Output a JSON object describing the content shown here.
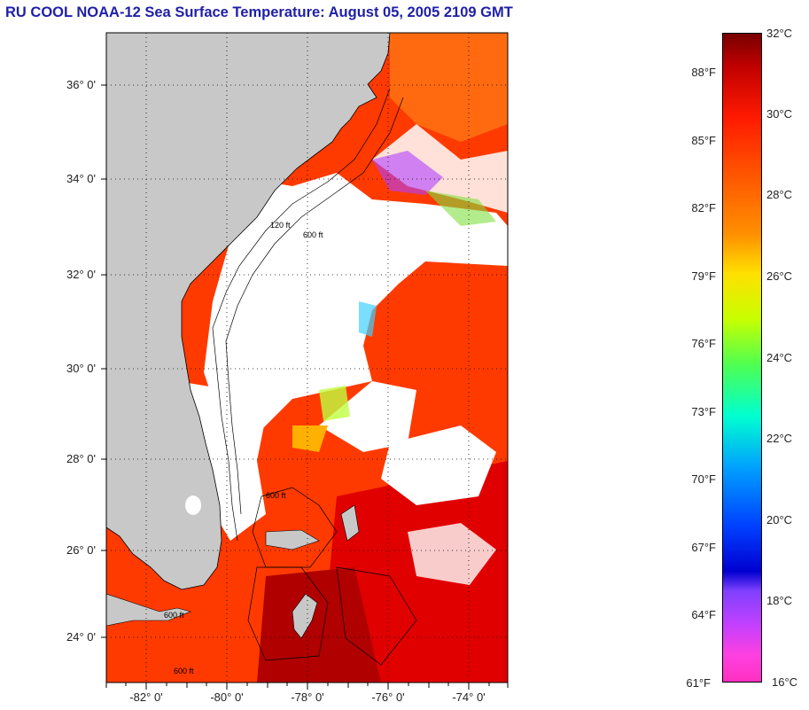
{
  "title": "RU COOL  NOAA-12  Sea Surface Temperature:  August 05, 2005 2109 GMT",
  "map": {
    "lat_labels": [
      "36° 0'",
      "34° 0'",
      "32° 0'",
      "30° 0'",
      "28° 0'",
      "26° 0'",
      "24° 0'"
    ],
    "lon_labels": [
      "-82° 0'",
      "-80° 0'",
      "-78° 0'",
      "-76° 0'",
      "-74° 0'"
    ],
    "contour_labels": [
      "120 ft",
      "600 ft",
      "600 ft",
      "600 ft",
      "600 ft"
    ],
    "colors": {
      "land": "#c8c8c8",
      "cloud": "#ffffff",
      "warm": "#ff2a00",
      "hot": "#c80000",
      "coastline": "#000000"
    }
  },
  "colorbar": {
    "fahrenheit_labels": [
      "88°F",
      "85°F",
      "82°F",
      "79°F",
      "76°F",
      "73°F",
      "70°F",
      "67°F",
      "64°F",
      "61°F"
    ],
    "celsius_labels": [
      "32°C",
      "30°C",
      "28°C",
      "26°C",
      "24°C",
      "22°C",
      "20°C",
      "18°C",
      "16°C"
    ]
  }
}
